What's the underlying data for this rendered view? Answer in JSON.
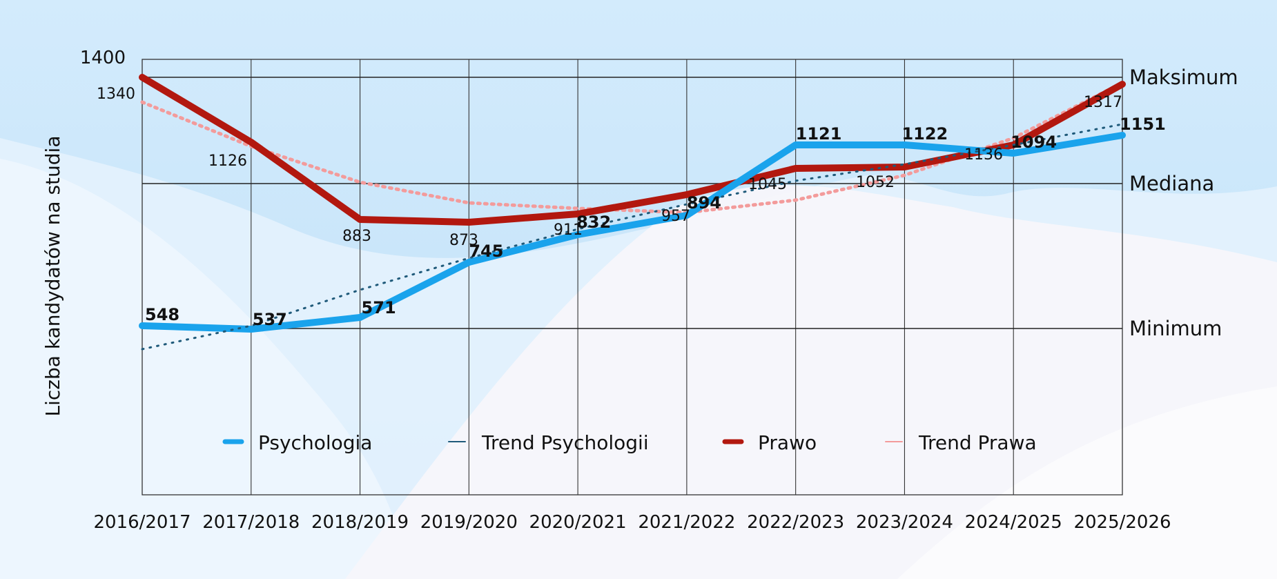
{
  "colors": {
    "psychologia": "#1aa3ec",
    "trend_psychologii": "#1f5a7a",
    "prawo": "#b2180f",
    "trend_prawa": "#f39b9b"
  },
  "chart_data": {
    "type": "line",
    "title": "",
    "xlabel": "",
    "ylabel": "Liczba kandydatów na studia",
    "ylim": [
      0,
      1400
    ],
    "y_ticks": [
      1400
    ],
    "grid": true,
    "legend_position": "bottom",
    "categories": [
      "2016/2017",
      "2017/2018",
      "2018/2019",
      "2019/2020",
      "2020/2021",
      "2021/2022",
      "2022/2023",
      "2023/2024",
      "2024/2025",
      "2025/2026"
    ],
    "reference_lines": [
      {
        "label": "Maksimum",
        "value": 1340
      },
      {
        "label": "Mediana",
        "value": 1045
      },
      {
        "label": "Minimum",
        "value": 537
      }
    ],
    "series": [
      {
        "name": "Psychologia",
        "style": "line",
        "values": [
          548,
          537,
          571,
          745,
          832,
          894,
          1121,
          1122,
          1094,
          1151
        ]
      },
      {
        "name": "Trend Psychologii",
        "style": "dotted",
        "values": [
          460,
          540,
          620,
          700,
          780,
          860,
          940,
          1020,
          1100,
          1180
        ]
      },
      {
        "name": "Prawo",
        "style": "line",
        "values": [
          1340,
          1126,
          883,
          873,
          911,
          957,
          1045,
          1052,
          1136,
          1317
        ]
      },
      {
        "name": "Trend Prawa",
        "style": "dotted",
        "values": [
          1270,
          1130,
          1020,
          960,
          930,
          920,
          955,
          1040,
          1150,
          1330
        ]
      }
    ]
  }
}
